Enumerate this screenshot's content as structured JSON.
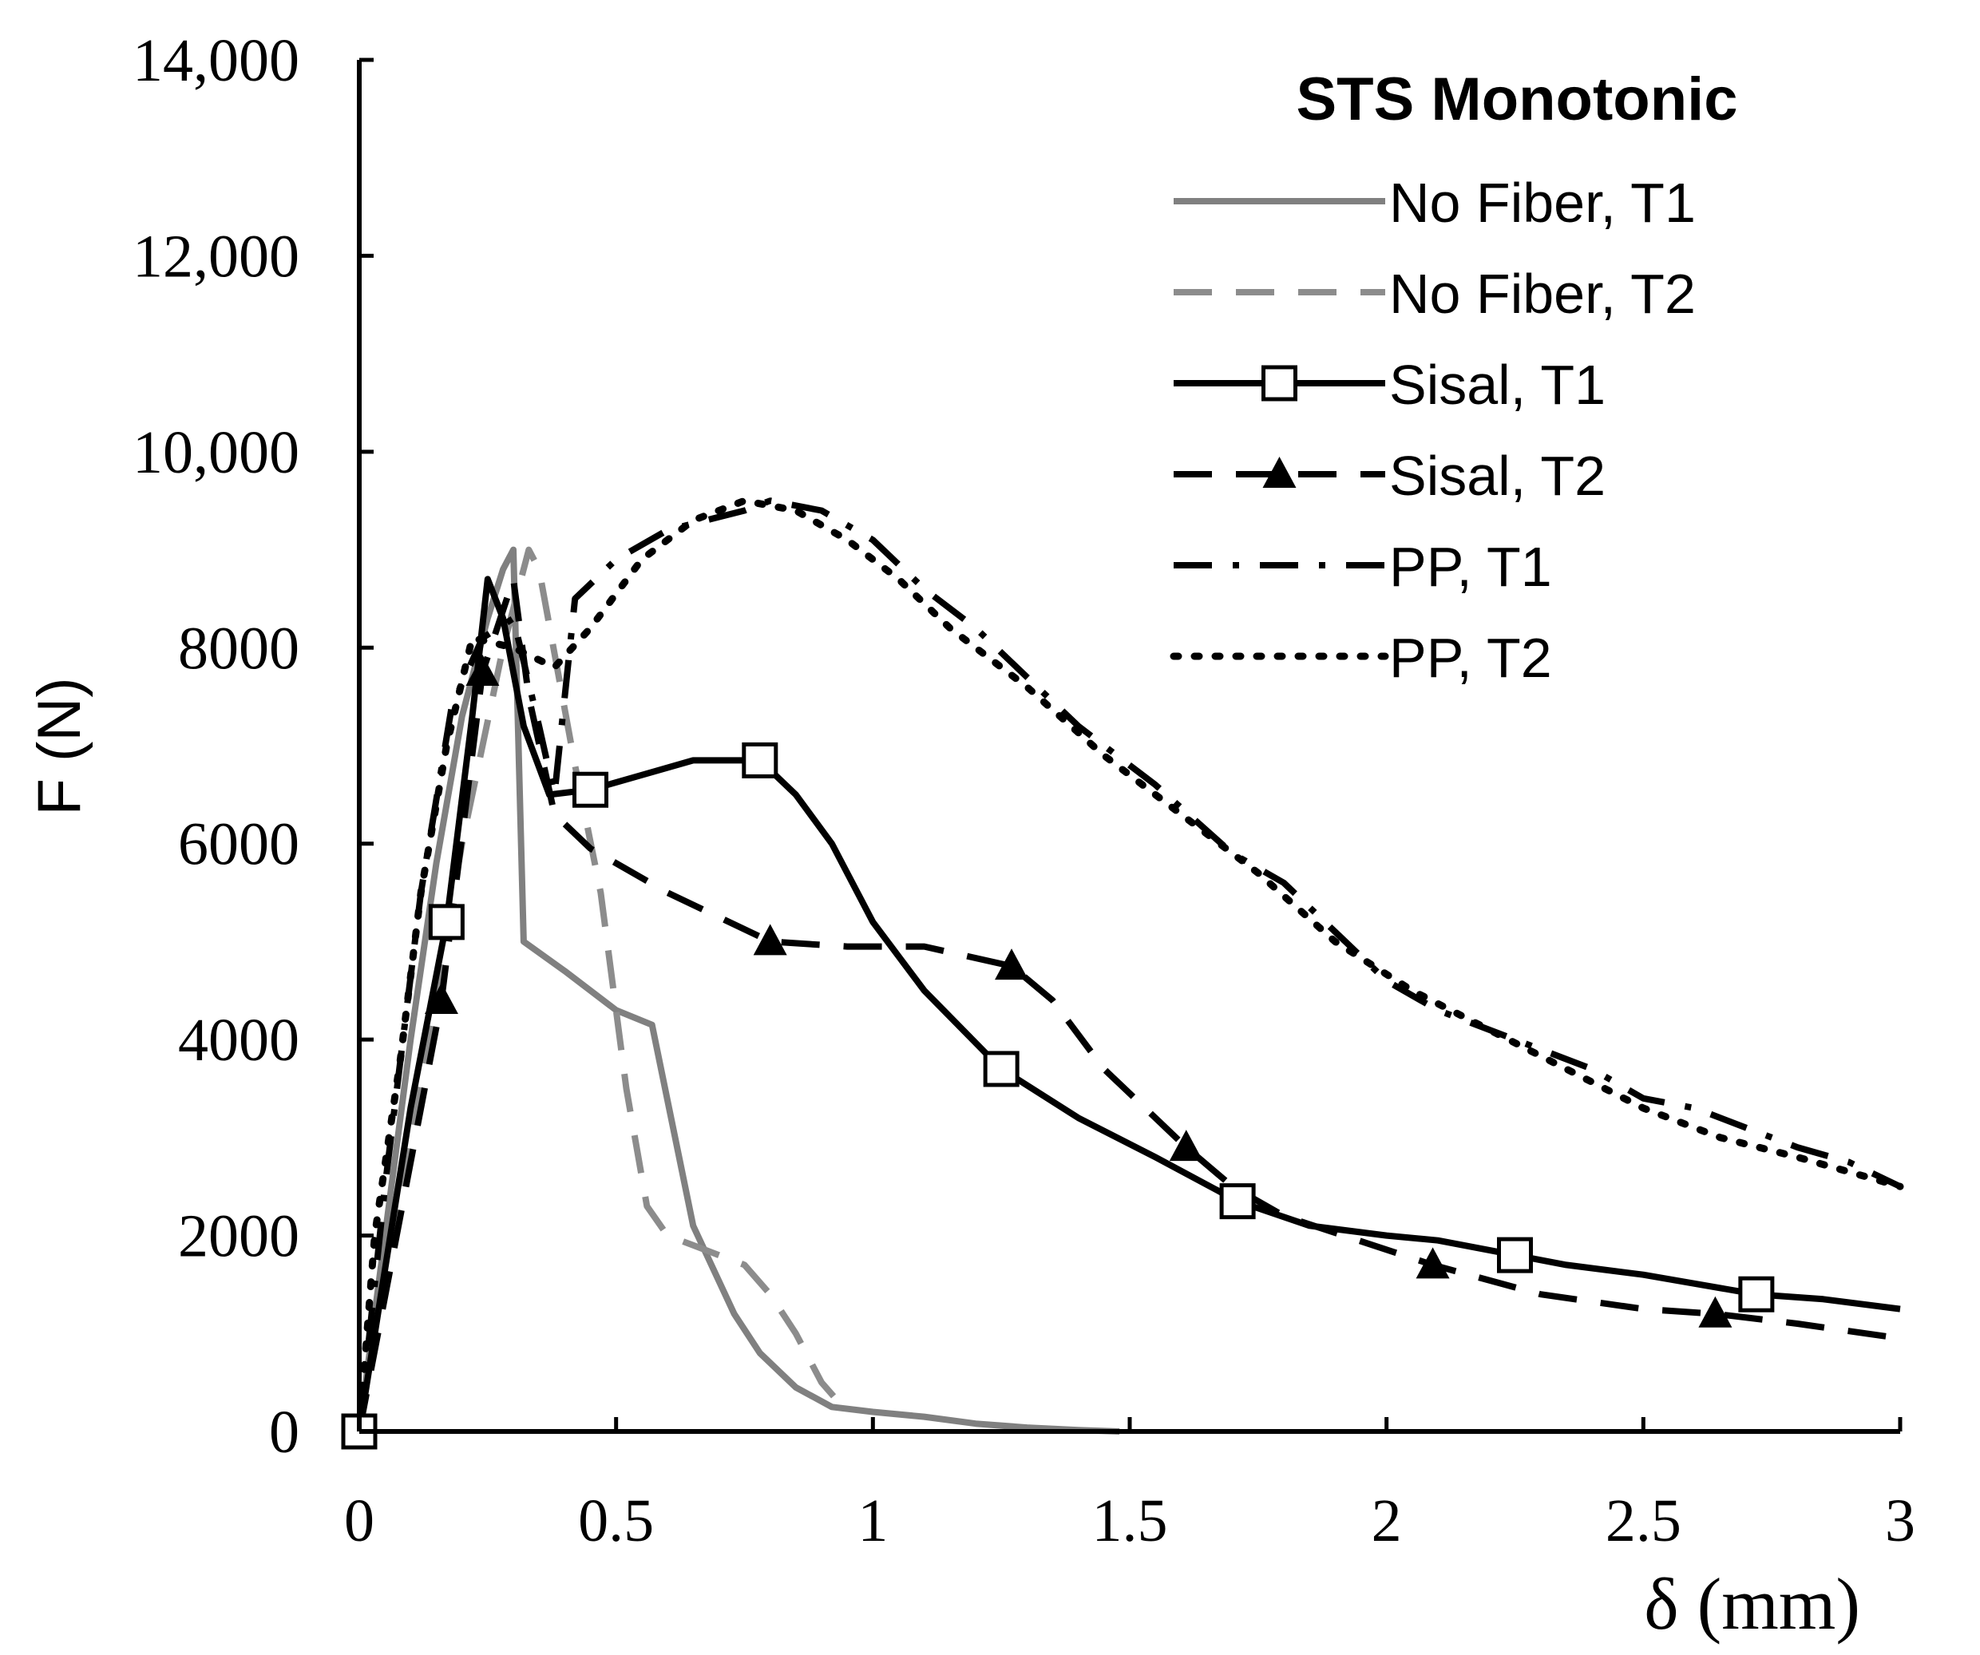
{
  "chart_data": {
    "type": "line",
    "title": "STS Monotonic",
    "xlabel": "δ (mm)",
    "ylabel": "F (N)",
    "xlim": [
      0,
      3
    ],
    "ylim": [
      0,
      14000
    ],
    "grid": false,
    "legend_position": "top-right",
    "x_ticks": [
      {
        "value": 0,
        "label": "0"
      },
      {
        "value": 0.5,
        "label": "0.5"
      },
      {
        "value": 1,
        "label": "1"
      },
      {
        "value": 1.5,
        "label": "1.5"
      },
      {
        "value": 2,
        "label": "2"
      },
      {
        "value": 2.5,
        "label": "2.5"
      },
      {
        "value": 3,
        "label": "3"
      }
    ],
    "y_ticks": [
      {
        "value": 0,
        "label": "0"
      },
      {
        "value": 2000,
        "label": "2000"
      },
      {
        "value": 4000,
        "label": "4000"
      },
      {
        "value": 6000,
        "label": "6000"
      },
      {
        "value": 8000,
        "label": "8000"
      },
      {
        "value": 10000,
        "label": "10,000"
      },
      {
        "value": 12000,
        "label": "12,000"
      },
      {
        "value": 14000,
        "label": "14,000"
      }
    ],
    "series": [
      {
        "name": "No Fiber, T1",
        "color": "#808080",
        "line": "solid",
        "marker": "none",
        "points": [
          [
            0,
            0
          ],
          [
            0.05,
            2000
          ],
          [
            0.1,
            4000
          ],
          [
            0.15,
            5800
          ],
          [
            0.2,
            7300
          ],
          [
            0.25,
            8300
          ],
          [
            0.28,
            8800
          ],
          [
            0.3,
            9000
          ],
          [
            0.32,
            5000
          ],
          [
            0.4,
            4700
          ],
          [
            0.5,
            4300
          ],
          [
            0.57,
            4150
          ],
          [
            0.65,
            2100
          ],
          [
            0.73,
            1200
          ],
          [
            0.78,
            800
          ],
          [
            0.85,
            450
          ],
          [
            0.92,
            250
          ],
          [
            1.0,
            200
          ],
          [
            1.1,
            150
          ],
          [
            1.2,
            80
          ],
          [
            1.3,
            40
          ],
          [
            1.4,
            15
          ],
          [
            1.48,
            0
          ]
        ]
      },
      {
        "name": "No Fiber, T2",
        "color": "#8c8c8c",
        "line": "dashed",
        "marker": "none",
        "points": [
          [
            0,
            0
          ],
          [
            0.1,
            3000
          ],
          [
            0.2,
            6000
          ],
          [
            0.28,
            8000
          ],
          [
            0.33,
            9000
          ],
          [
            0.35,
            8800
          ],
          [
            0.42,
            6800
          ],
          [
            0.47,
            5500
          ],
          [
            0.52,
            3500
          ],
          [
            0.56,
            2300
          ],
          [
            0.6,
            2000
          ],
          [
            0.65,
            1900
          ],
          [
            0.7,
            1800
          ],
          [
            0.75,
            1700
          ],
          [
            0.8,
            1400
          ],
          [
            0.85,
            1000
          ],
          [
            0.9,
            500
          ],
          [
            0.95,
            200
          ]
        ]
      },
      {
        "name": "Sisal, T1",
        "color": "#000000",
        "line": "solid",
        "marker": "square",
        "marker_points": [
          [
            0,
            0
          ],
          [
            0.17,
            5200
          ],
          [
            0.45,
            6550
          ],
          [
            0.78,
            6850
          ],
          [
            1.25,
            3700
          ],
          [
            1.71,
            2350
          ],
          [
            2.25,
            1800
          ],
          [
            2.72,
            1400
          ]
        ],
        "points": [
          [
            0,
            0
          ],
          [
            0.1,
            3300
          ],
          [
            0.17,
            5200
          ],
          [
            0.22,
            7300
          ],
          [
            0.25,
            8700
          ],
          [
            0.28,
            8300
          ],
          [
            0.32,
            7200
          ],
          [
            0.37,
            6500
          ],
          [
            0.45,
            6550
          ],
          [
            0.55,
            6700
          ],
          [
            0.65,
            6850
          ],
          [
            0.78,
            6850
          ],
          [
            0.85,
            6500
          ],
          [
            0.92,
            6000
          ],
          [
            1.0,
            5200
          ],
          [
            1.1,
            4500
          ],
          [
            1.25,
            3700
          ],
          [
            1.4,
            3200
          ],
          [
            1.55,
            2800
          ],
          [
            1.71,
            2350
          ],
          [
            1.85,
            2100
          ],
          [
            2.0,
            2000
          ],
          [
            2.1,
            1950
          ],
          [
            2.25,
            1800
          ],
          [
            2.35,
            1700
          ],
          [
            2.5,
            1600
          ],
          [
            2.72,
            1400
          ],
          [
            2.85,
            1350
          ],
          [
            3.0,
            1250
          ]
        ]
      },
      {
        "name": "Sisal, T2",
        "color": "#000000",
        "line": "dashed",
        "marker": "triangle",
        "marker_points": [
          [
            0.16,
            4400
          ],
          [
            0.24,
            7750
          ],
          [
            0.8,
            5000
          ],
          [
            1.27,
            4750
          ],
          [
            1.61,
            2900
          ],
          [
            2.09,
            1700
          ],
          [
            2.64,
            1200
          ]
        ],
        "points": [
          [
            0,
            0
          ],
          [
            0.08,
            2200
          ],
          [
            0.16,
            4400
          ],
          [
            0.24,
            7750
          ],
          [
            0.3,
            8700
          ],
          [
            0.33,
            7500
          ],
          [
            0.38,
            6300
          ],
          [
            0.45,
            5950
          ],
          [
            0.6,
            5500
          ],
          [
            0.8,
            5000
          ],
          [
            0.95,
            4950
          ],
          [
            1.1,
            4950
          ],
          [
            1.27,
            4750
          ],
          [
            1.35,
            4400
          ],
          [
            1.45,
            3700
          ],
          [
            1.53,
            3300
          ],
          [
            1.61,
            2900
          ],
          [
            1.7,
            2500
          ],
          [
            1.8,
            2200
          ],
          [
            2.09,
            1700
          ],
          [
            2.3,
            1400
          ],
          [
            2.5,
            1250
          ],
          [
            2.64,
            1200
          ],
          [
            2.8,
            1100
          ],
          [
            3.0,
            950
          ]
        ]
      },
      {
        "name": "PP, T1",
        "color": "#000000",
        "line": "dashdot",
        "marker": "none",
        "points": [
          [
            0,
            0
          ],
          [
            0.05,
            2500
          ],
          [
            0.12,
            5500
          ],
          [
            0.18,
            7400
          ],
          [
            0.24,
            8100
          ],
          [
            0.3,
            8300
          ],
          [
            0.35,
            7200
          ],
          [
            0.38,
            6500
          ],
          [
            0.42,
            8500
          ],
          [
            0.5,
            8900
          ],
          [
            0.6,
            9200
          ],
          [
            0.75,
            9400
          ],
          [
            0.8,
            9500
          ],
          [
            0.9,
            9400
          ],
          [
            1.0,
            9100
          ],
          [
            1.1,
            8600
          ],
          [
            1.2,
            8200
          ],
          [
            1.3,
            7700
          ],
          [
            1.4,
            7200
          ],
          [
            1.55,
            6600
          ],
          [
            1.7,
            5900
          ],
          [
            1.8,
            5600
          ],
          [
            1.9,
            5100
          ],
          [
            2.0,
            4600
          ],
          [
            2.1,
            4300
          ],
          [
            2.25,
            4000
          ],
          [
            2.4,
            3700
          ],
          [
            2.5,
            3400
          ],
          [
            2.6,
            3300
          ],
          [
            2.7,
            3100
          ],
          [
            2.8,
            2900
          ],
          [
            2.9,
            2750
          ],
          [
            3.0,
            2500
          ]
        ]
      },
      {
        "name": "PP, T2",
        "color": "#000000",
        "line": "dotted",
        "marker": "none",
        "points": [
          [
            0,
            0
          ],
          [
            0.03,
            2000
          ],
          [
            0.08,
            3800
          ],
          [
            0.12,
            5500
          ],
          [
            0.17,
            7000
          ],
          [
            0.22,
            8100
          ],
          [
            0.3,
            8000
          ],
          [
            0.38,
            7800
          ],
          [
            0.45,
            8200
          ],
          [
            0.55,
            8900
          ],
          [
            0.65,
            9300
          ],
          [
            0.75,
            9500
          ],
          [
            0.85,
            9400
          ],
          [
            0.95,
            9100
          ],
          [
            1.05,
            8700
          ],
          [
            1.15,
            8200
          ],
          [
            1.3,
            7600
          ],
          [
            1.45,
            6900
          ],
          [
            1.6,
            6300
          ],
          [
            1.75,
            5700
          ],
          [
            1.9,
            5000
          ],
          [
            2.05,
            4500
          ],
          [
            2.2,
            4100
          ],
          [
            2.35,
            3700
          ],
          [
            2.5,
            3300
          ],
          [
            2.65,
            3000
          ],
          [
            2.8,
            2800
          ],
          [
            2.9,
            2650
          ],
          [
            3.0,
            2500
          ]
        ]
      }
    ]
  }
}
